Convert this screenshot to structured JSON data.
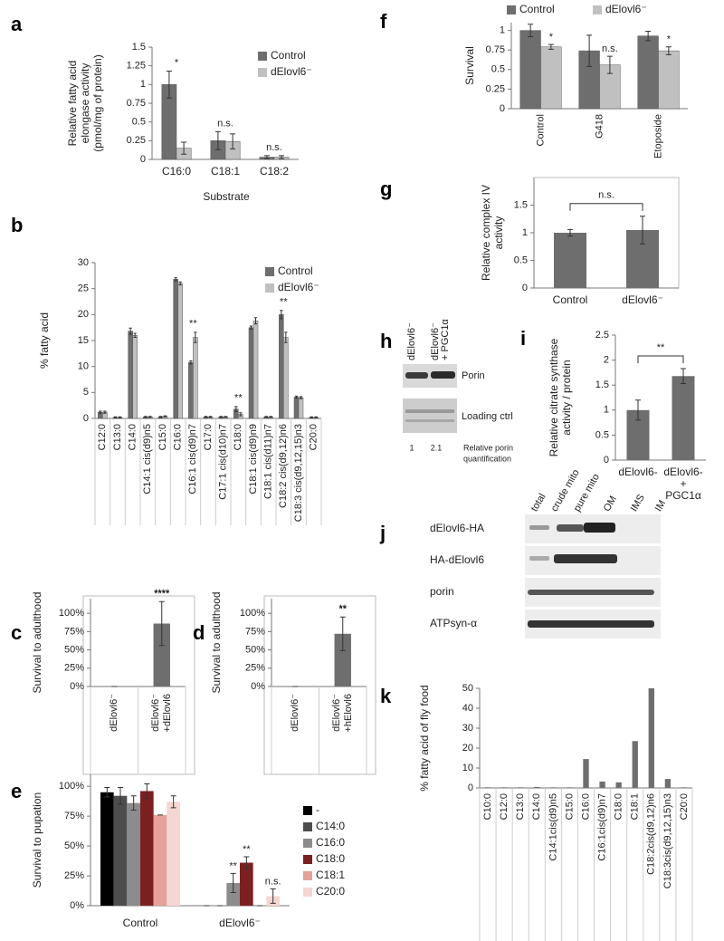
{
  "chart_data": [
    {
      "panel": "a",
      "type": "bar",
      "ylabel": [
        "Relative fatty acid",
        "elongase activity",
        "(pmol/mg of protein)"
      ],
      "xlabel": "Substrate",
      "categories": [
        "C16:0",
        "C18:1",
        "C18:2"
      ],
      "series": [
        {
          "name": "Control",
          "color": "#6e6e6e",
          "values": [
            1.0,
            0.25,
            0.03
          ],
          "errors": [
            0.18,
            0.12,
            0.02
          ]
        },
        {
          "name": "dElovl6⁻",
          "color": "#c0c0c0",
          "values": [
            0.15,
            0.24,
            0.03
          ],
          "errors": [
            0.08,
            0.1,
            0.02
          ]
        }
      ],
      "annotations": [
        "*",
        "n.s.",
        "n.s."
      ],
      "ylim": [
        0,
        1.5
      ],
      "yticks": [
        0,
        0.25,
        0.5,
        0.75,
        1,
        1.25,
        1.5
      ],
      "grid": false,
      "legend": "upper right"
    },
    {
      "panel": "b",
      "type": "bar",
      "ylabel": "% fatty acid",
      "categories": [
        "C12:0",
        "C13:0",
        "C14:0",
        "C14:1 cis(d9)n5",
        "C15:0",
        "C16:0",
        "C16:1 cis(d9)n7",
        "C17:0",
        "C17:1 cis(d10)n7",
        "C18:0",
        "C18:1 cis(d9)n9",
        "C18:1 cis(d11)n7",
        "C18:2 cis(d9,12)n6",
        "C18:3 cis(d9,12,15)n3",
        "C20:0"
      ],
      "series": [
        {
          "name": "Control",
          "color": "#6e6e6e",
          "values": [
            1.2,
            0.2,
            16.8,
            0.3,
            0.3,
            26.8,
            10.8,
            0.3,
            0.3,
            1.8,
            17.5,
            0.3,
            20,
            4.1,
            0.2
          ],
          "errors": [
            0.2,
            0.1,
            0.6,
            0.1,
            0.1,
            0.3,
            0.3,
            0.1,
            0.1,
            0.5,
            0.3,
            0.1,
            0.8,
            0.2,
            0.1
          ]
        },
        {
          "name": "dElovl6⁻",
          "color": "#c0c0c0",
          "values": [
            1.2,
            0.2,
            16,
            0.3,
            0.4,
            26,
            15.6,
            0.3,
            0.3,
            0.8,
            18.8,
            0.3,
            15.6,
            4.0,
            0.2
          ],
          "errors": [
            0.2,
            0.1,
            0.4,
            0.1,
            0.1,
            0.3,
            1.0,
            0.1,
            0.1,
            0.3,
            0.6,
            0.1,
            1.0,
            0.2,
            0.1
          ]
        }
      ],
      "annotations": [
        null,
        null,
        null,
        null,
        null,
        null,
        "**",
        null,
        null,
        "**",
        null,
        null,
        "**",
        null,
        null
      ],
      "ylim": [
        0,
        30
      ],
      "yticks": [
        0,
        5,
        10,
        15,
        20,
        25,
        30
      ],
      "grid": false,
      "legend": "upper right"
    },
    {
      "panel": "c",
      "type": "bar",
      "ylabel": "Survival to adulthood",
      "categories": [
        [
          "dElovl6⁻"
        ],
        [
          "dElovl6⁻",
          "+dElovl6"
        ]
      ],
      "color": "#6e6e6e",
      "values": [
        0,
        86
      ],
      "errors": [
        0,
        30
      ],
      "annotations": [
        null,
        "****"
      ],
      "ylim": [
        0,
        120
      ],
      "yticks": [
        {
          "value": 0,
          "label": "0%"
        },
        {
          "value": 25,
          "label": "25%"
        },
        {
          "value": 50,
          "label": "50%"
        },
        {
          "value": 75,
          "label": "75%"
        },
        {
          "value": 100,
          "label": "100%"
        }
      ],
      "grid": false
    },
    {
      "panel": "d",
      "type": "bar",
      "ylabel": "Survival to adulthood",
      "categories": [
        [
          "dElovl6⁻"
        ],
        [
          "dElovl6⁻",
          "+hElovl6"
        ]
      ],
      "color": "#6e6e6e",
      "values": [
        0,
        72
      ],
      "errors": [
        0,
        23
      ],
      "annotations": [
        null,
        "**"
      ],
      "ylim": [
        0,
        120
      ],
      "yticks": [
        {
          "value": 0,
          "label": "0%"
        },
        {
          "value": 25,
          "label": "25%"
        },
        {
          "value": 50,
          "label": "50%"
        },
        {
          "value": 75,
          "label": "75%"
        },
        {
          "value": 100,
          "label": "100%"
        }
      ],
      "grid": false
    },
    {
      "panel": "e",
      "type": "bar",
      "ylabel": "Survival to pupation",
      "categories": [
        "Control",
        "dElovl6⁻"
      ],
      "series": [
        {
          "name": "-",
          "color": "#000000",
          "values": [
            95,
            0
          ],
          "errors": [
            4,
            0
          ]
        },
        {
          "name": "C14:0",
          "color": "#4d4d4d",
          "values": [
            92,
            0
          ],
          "errors": [
            7,
            0
          ]
        },
        {
          "name": "C16:0",
          "color": "#8c8c8c",
          "values": [
            86,
            19
          ],
          "errors": [
            6,
            8
          ],
          "annotations": [
            null,
            "**"
          ]
        },
        {
          "name": "C18:0",
          "color": "#7b2020",
          "values": [
            96,
            36
          ],
          "errors": [
            6,
            5
          ],
          "annotations": [
            null,
            "**"
          ]
        },
        {
          "name": "C18:1",
          "color": "#e3a29b",
          "values": [
            76,
            0
          ],
          "errors": [
            0,
            0
          ]
        },
        {
          "name": "C20:0",
          "color": "#f6d6d3",
          "values": [
            87,
            8
          ],
          "errors": [
            5,
            6
          ],
          "annotations": [
            null,
            "n.s."
          ]
        }
      ],
      "ylim": [
        0,
        110
      ],
      "yticks": [
        {
          "value": 0,
          "label": "0%"
        },
        {
          "value": 25,
          "label": "25%"
        },
        {
          "value": 50,
          "label": "50%"
        },
        {
          "value": 75,
          "label": "75%"
        },
        {
          "value": 100,
          "label": "100%"
        }
      ],
      "grid": false,
      "legend": "right"
    },
    {
      "panel": "f",
      "type": "bar",
      "ylabel": "Survival",
      "categories": [
        "Control",
        "G418",
        "Etoposide"
      ],
      "series": [
        {
          "name": "Control",
          "color": "#6e6e6e",
          "values": [
            1.0,
            0.74,
            0.93
          ],
          "errors": [
            0.08,
            0.2,
            0.06
          ]
        },
        {
          "name": "dElovl6⁻",
          "color": "#c0c0c0",
          "values": [
            0.79,
            0.56,
            0.74
          ],
          "errors": [
            0.03,
            0.11,
            0.05
          ],
          "annotations": [
            "*",
            "n.s.",
            "*"
          ]
        }
      ],
      "ylim": [
        0,
        1.1
      ],
      "yticks": [
        0,
        0.25,
        0.5,
        0.75,
        1
      ],
      "grid": false,
      "legend": "top"
    },
    {
      "panel": "g",
      "type": "bar",
      "ylabel": [
        "Relative complex IV",
        "activity"
      ],
      "categories": [
        "Control",
        "dElovl6⁻"
      ],
      "color": "#6e6e6e",
      "values": [
        1.0,
        1.05
      ],
      "errors": [
        0.06,
        0.25
      ],
      "bracket_label": "n.s.",
      "ylim": [
        0,
        2
      ],
      "yticks": [
        0,
        0.5,
        1,
        1.5
      ],
      "grid": false
    },
    {
      "panel": "i",
      "type": "bar",
      "ylabel": [
        "Relative citrate synthase",
        "activity / protein"
      ],
      "categories": [
        [
          "dElovl6-"
        ],
        [
          "dElovl6-",
          "+",
          "PGC1α"
        ]
      ],
      "color": "#6e6e6e",
      "values": [
        1.0,
        1.68
      ],
      "errors": [
        0.2,
        0.15
      ],
      "bracket_label": "**",
      "ylim": [
        0,
        2.5
      ],
      "yticks": [
        0,
        0.5,
        1,
        1.5,
        2,
        2.5
      ],
      "grid": false
    },
    {
      "panel": "k",
      "type": "bar",
      "ylabel": "% fatty acid of fly food",
      "categories": [
        "C10:0",
        "C12:0",
        "C13:0",
        "C14:0",
        "C14:1cis(d9)n5",
        "C15:0",
        "C16:0",
        "C16:1cis(d9)n7",
        "C18:0",
        "C18:1",
        "C18:2cis(d9,12)n6",
        "C18:3cis(d9,12,15)n3",
        "C20:0"
      ],
      "color": "#6e6e6e",
      "values": [
        0.3,
        0.3,
        0.3,
        0.5,
        0.3,
        0.3,
        14.5,
        3.2,
        2.8,
        23.5,
        50,
        4.5,
        0.3
      ],
      "ylim": [
        0,
        50
      ],
      "yticks": [
        0,
        10,
        20,
        30,
        40,
        50
      ],
      "grid": false
    }
  ],
  "blots": {
    "h": {
      "panel": "h",
      "columns": [
        [
          "dElovl6⁻"
        ],
        [
          "dElovl6⁻",
          "+ PGC1α"
        ]
      ],
      "rows": [
        "Porin",
        "Loading ctrl"
      ],
      "quantification": [
        1,
        2.1
      ],
      "quantification_label": [
        "Relative porin",
        "quantification"
      ]
    },
    "j": {
      "panel": "j",
      "columns": [
        "total",
        "crude mito",
        "pure mito",
        "OM",
        "IMS",
        "IM"
      ],
      "rows": [
        "dElovl6-HA",
        "HA-dElovl6",
        "porin",
        "ATPsyn-α"
      ]
    }
  }
}
